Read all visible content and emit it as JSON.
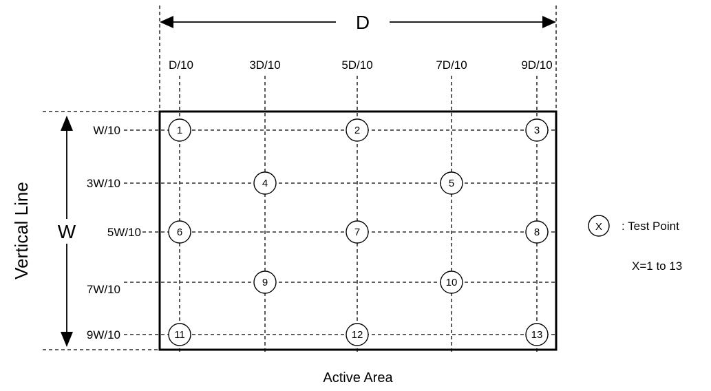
{
  "dimension_labels": {
    "depth": "D",
    "width": "W"
  },
  "column_labels": [
    "D/10",
    "3D/10",
    "5D/10",
    "7D/10",
    "9D/10"
  ],
  "row_labels": [
    "W/10",
    "3W/10",
    "5W/10",
    "7W/10",
    "9W/10"
  ],
  "side_label": "Vertical Line",
  "bottom_label": "Active Area",
  "test_points": [
    {
      "label": "1",
      "col": 0,
      "row": 0
    },
    {
      "label": "2",
      "col": 2,
      "row": 0
    },
    {
      "label": "3",
      "col": 4,
      "row": 0
    },
    {
      "label": "4",
      "col": 1,
      "row": 1
    },
    {
      "label": "5",
      "col": 3,
      "row": 1
    },
    {
      "label": "6",
      "col": 0,
      "row": 2
    },
    {
      "label": "7",
      "col": 2,
      "row": 2
    },
    {
      "label": "8",
      "col": 4,
      "row": 2
    },
    {
      "label": "9",
      "col": 1,
      "row": 3
    },
    {
      "label": "10",
      "col": 3,
      "row": 3
    },
    {
      "label": "11",
      "col": 0,
      "row": 4
    },
    {
      "label": "12",
      "col": 2,
      "row": 4
    },
    {
      "label": "13",
      "col": 4,
      "row": 4
    }
  ],
  "legend": {
    "symbol": "X",
    "text": ": Test Point",
    "range": "X=1 to 13"
  }
}
